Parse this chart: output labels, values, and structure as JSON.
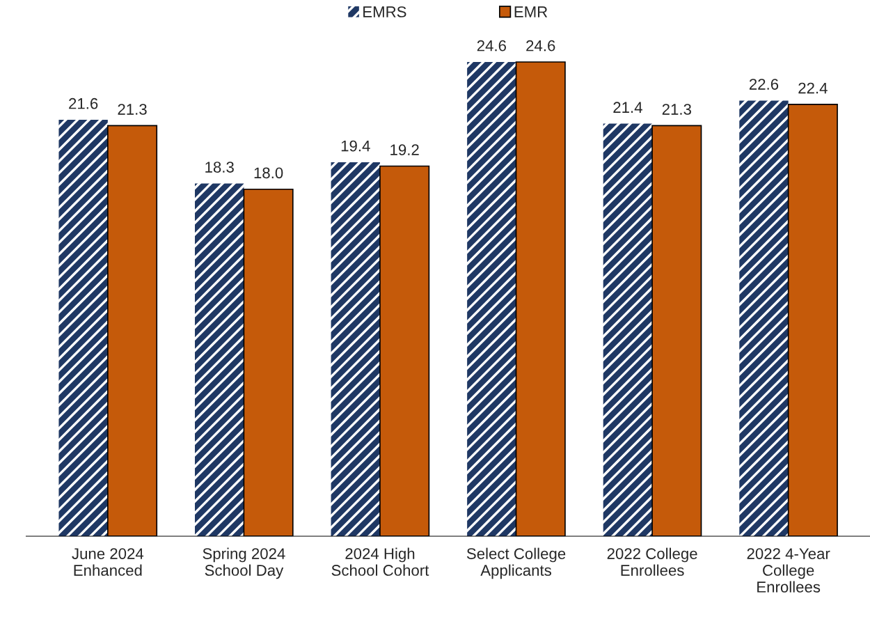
{
  "chart_data": {
    "type": "bar",
    "categories": [
      "June 2024\nEnhanced",
      "Spring 2024\nSchool Day",
      "2024 High\nSchool Cohort",
      "Select College\nApplicants",
      "2022 College\nEnrollees",
      "2022 4-Year\nCollege\nEnrollees"
    ],
    "series": [
      {
        "name": "EMRS",
        "color": "#1f3864",
        "values": [
          21.6,
          18.3,
          19.4,
          24.6,
          21.4,
          22.6
        ],
        "value_labels": [
          "21.6",
          "18.3",
          "19.4",
          "24.6",
          "21.4",
          "22.6"
        ]
      },
      {
        "name": "EMR",
        "color": "#c55a0a",
        "values": [
          21.3,
          18.0,
          19.2,
          24.6,
          21.3,
          22.4
        ],
        "value_labels": [
          "21.3",
          "18.0",
          "19.2",
          "24.6",
          "21.3",
          "22.4"
        ]
      }
    ],
    "legend": "top"
  }
}
